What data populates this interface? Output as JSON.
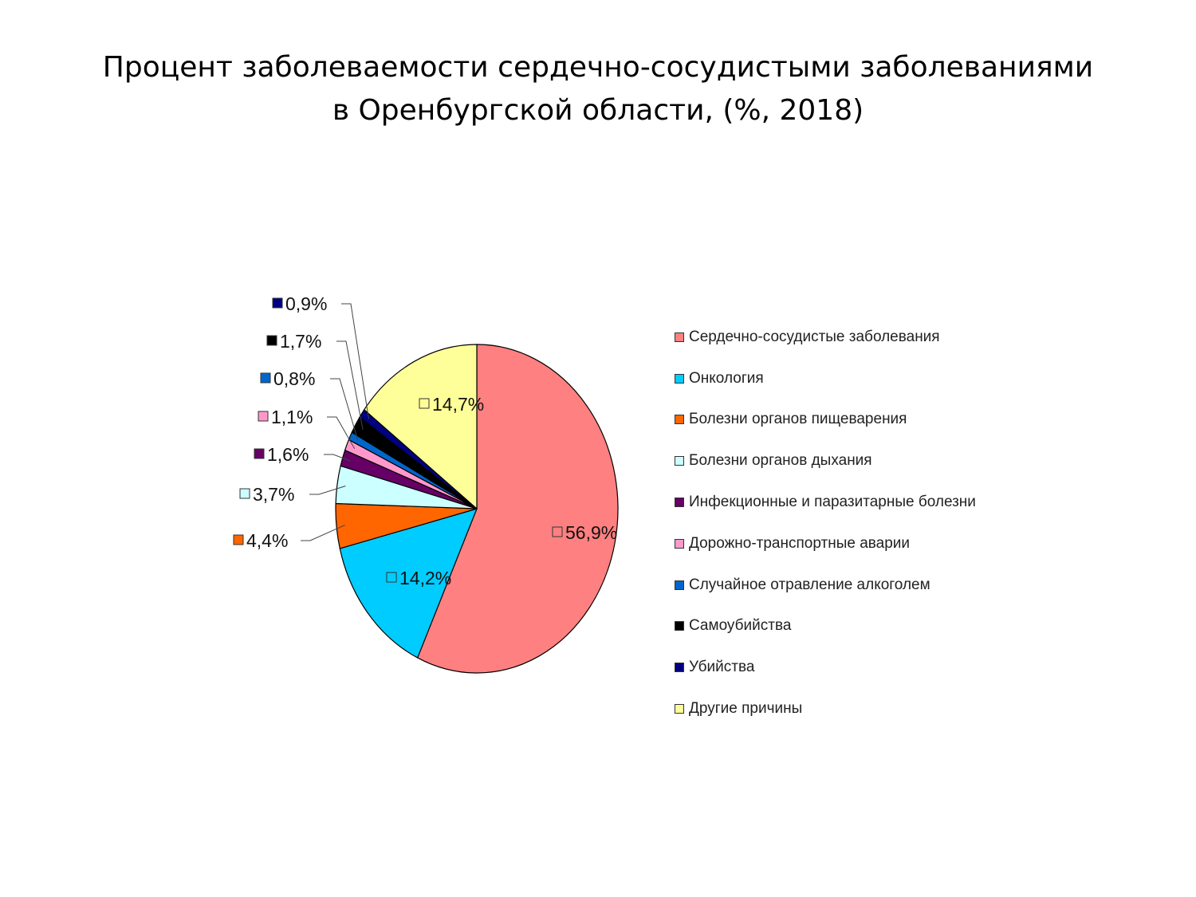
{
  "chart_data": {
    "type": "pie",
    "title": [
      "Процент заболеваемости сердечно-сосудистыми заболеваниями",
      "в Оренбургской области, (%, 2018)"
    ],
    "legend_position": "right",
    "slices": [
      {
        "name": "Сердечно-сосудистые заболевания",
        "value": 56.9,
        "label": "56,9%",
        "color": "#ff8080"
      },
      {
        "name": "Онкология",
        "value": 14.2,
        "label": "14,2%",
        "color": "#00ccff"
      },
      {
        "name": "Болезни органов пищеварения",
        "value": 4.4,
        "label": "4,4%",
        "color": "#ff6600"
      },
      {
        "name": "Болезни органов дыхания",
        "value": 3.7,
        "label": "3,7%",
        "color": "#ccffff"
      },
      {
        "name": "Инфекционные и паразитарные болезни",
        "value": 1.6,
        "label": "1,6%",
        "color": "#660066"
      },
      {
        "name": "Дорожно-транспортные аварии",
        "value": 1.1,
        "label": "1,1%",
        "color": "#ff99cc"
      },
      {
        "name": "Случайное отравление алкоголем",
        "value": 0.8,
        "label": "0,8%",
        "color": "#0066cc"
      },
      {
        "name": "Самоубийства",
        "value": 1.7,
        "label": "1,7%",
        "color": "#000000"
      },
      {
        "name": "Убийства",
        "value": 0.9,
        "label": "0,9%",
        "color": "#000080"
      },
      {
        "name": "Другие причины",
        "value": 14.7,
        "label": "14,7%",
        "color": "#ffff99"
      }
    ]
  }
}
